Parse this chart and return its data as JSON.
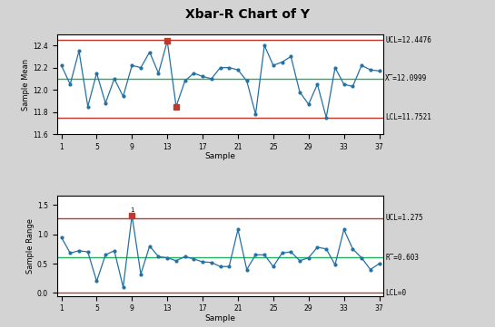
{
  "title": "Xbar-R Chart of Y",
  "xbar_data": [
    12.22,
    12.05,
    12.35,
    11.85,
    12.15,
    11.88,
    12.1,
    11.94,
    12.22,
    12.2,
    12.34,
    12.15,
    12.44,
    11.85,
    12.08,
    12.15,
    12.12,
    12.1,
    12.2,
    12.2,
    12.18,
    12.08,
    11.78,
    12.4,
    12.22,
    12.25,
    12.3,
    11.98,
    11.87,
    12.05,
    11.75,
    12.2,
    12.05,
    12.03,
    12.22,
    12.18,
    12.17
  ],
  "range_data": [
    0.95,
    0.68,
    0.72,
    0.7,
    0.2,
    0.65,
    0.72,
    0.1,
    1.32,
    0.32,
    0.8,
    0.62,
    0.6,
    0.55,
    0.62,
    0.58,
    0.53,
    0.52,
    0.45,
    0.45,
    1.08,
    0.4,
    0.65,
    0.65,
    0.45,
    0.68,
    0.7,
    0.55,
    0.6,
    0.78,
    0.75,
    0.48,
    1.08,
    0.75,
    0.6,
    0.4,
    0.5
  ],
  "xbar_ucl": 12.4476,
  "xbar_cl": 12.0999,
  "xbar_lcl": 11.7521,
  "range_ucl": 1.275,
  "range_cl": 0.603,
  "range_lcl": 0,
  "xbar_violations": [
    13,
    14
  ],
  "range_violations": [
    9
  ],
  "ucl_color": "#C0392B",
  "cl_color": "#27AE60",
  "range_cl_color": "#000000",
  "lcl_color": "#C0392B",
  "line_color": "#2471A3",
  "point_color": "#2471A3",
  "violation_color": "#C0392B",
  "bg_color": "#D3D3D3",
  "plot_bg": "#FFFFFF",
  "xlabel": "Sample",
  "xbar_ylabel": "Sample Mean",
  "range_ylabel": "Sample Range",
  "xbar_ylim": [
    11.6,
    12.5
  ],
  "range_ylim": [
    -0.05,
    1.65
  ],
  "xticks": [
    1,
    5,
    9,
    13,
    17,
    21,
    25,
    29,
    33,
    37
  ],
  "n_samples": 37,
  "xbar_yticks": [
    11.6,
    11.8,
    12.0,
    12.2,
    12.4
  ],
  "range_yticks": [
    0.0,
    0.5,
    1.0,
    1.5
  ]
}
